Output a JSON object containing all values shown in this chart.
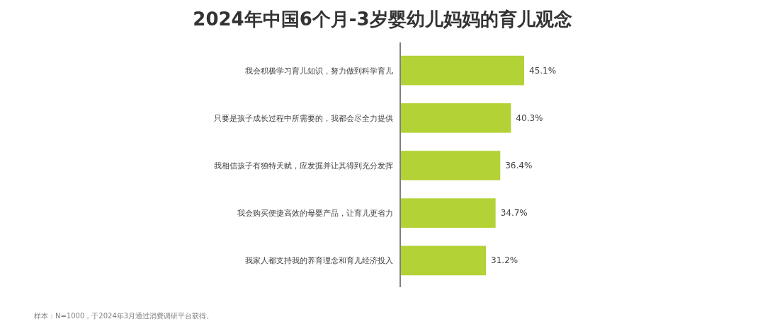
{
  "chart_data": {
    "type": "bar",
    "orientation": "horizontal",
    "title": "2024年中国6个月-3岁婴幼儿妈妈的育儿观念",
    "categories": [
      "我会积极学习育儿知识，努力做到科学育儿",
      "只要是孩子成长过程中所需要的，我都会尽全力提供",
      "我相信孩子有独特天赋，应发掘并让其得到充分发挥",
      "我会购买便捷高效的母婴产品，让育儿更省力",
      "我家人都支持我的养育理念和育儿经济投入"
    ],
    "values": [
      45.1,
      40.3,
      36.4,
      34.7,
      31.2
    ],
    "value_labels": [
      "45.1%",
      "40.3%",
      "36.4%",
      "34.7%",
      "31.2%"
    ],
    "color": "#b2d235",
    "annotations": [
      "样本：N=1000，于2024年3月通过消费调研平台获得。"
    ]
  }
}
